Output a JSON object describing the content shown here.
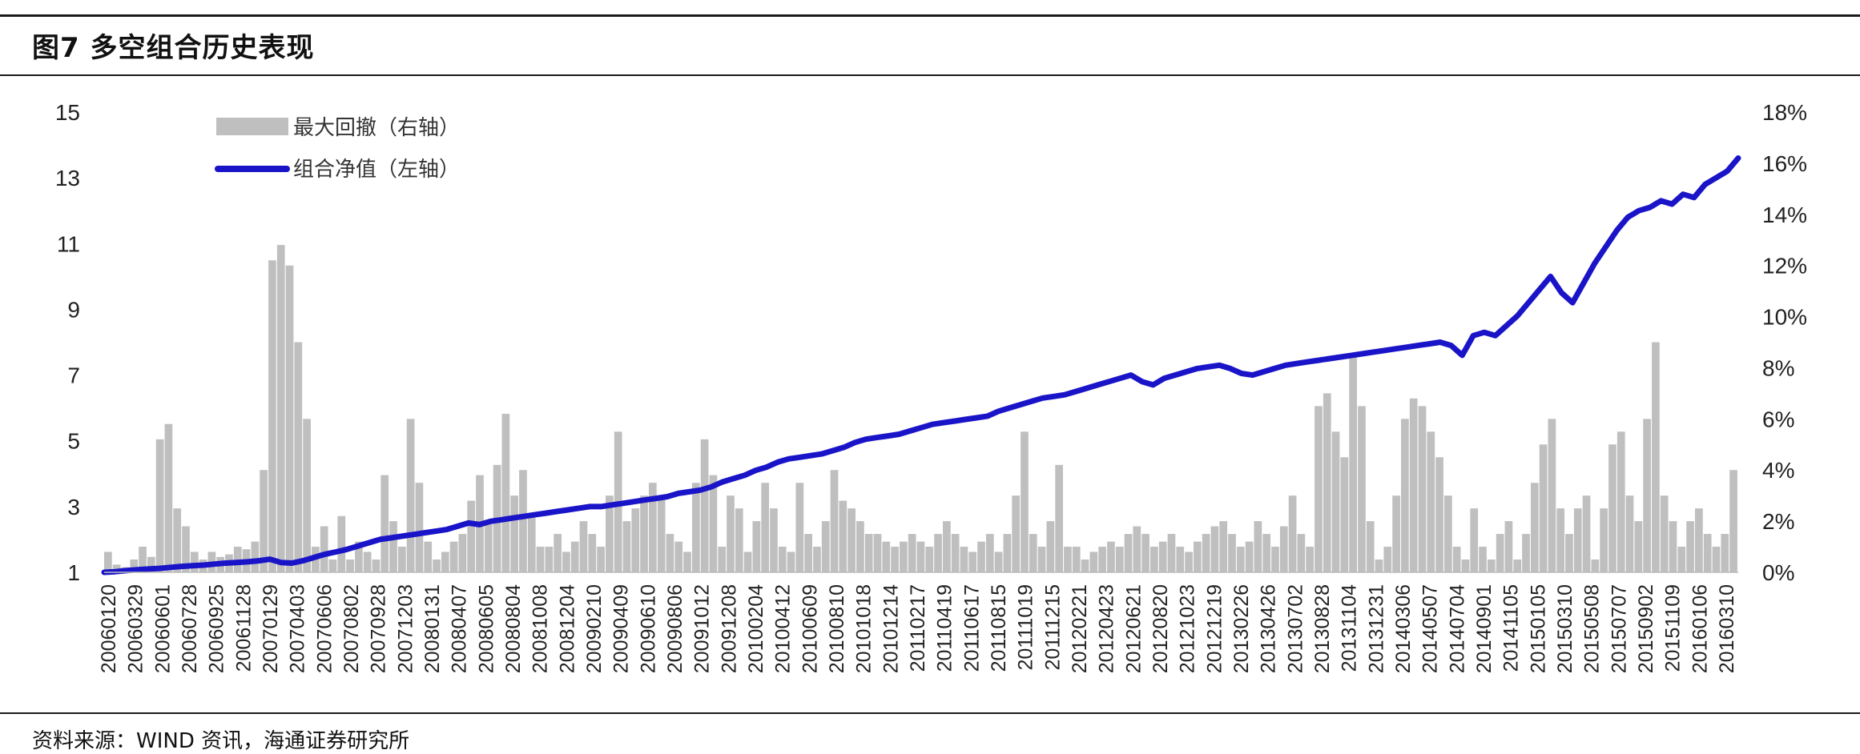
{
  "figure": {
    "title": "图7  多空组合历史表现",
    "source": "资料来源：WIND 资讯，海通证券研究所"
  },
  "chart_data": {
    "type": "bar+line",
    "legend_position": "top-left",
    "grid": false,
    "left_axis": {
      "ticks": [
        "15",
        "13",
        "11",
        "9",
        "7",
        "5",
        "3",
        "1"
      ],
      "ylim": [
        1,
        15
      ]
    },
    "right_axis": {
      "ticks": [
        "18%",
        "16%",
        "14%",
        "12%",
        "10%",
        "8%",
        "6%",
        "4%",
        "2%",
        "0%"
      ],
      "ylim": [
        0,
        18
      ]
    },
    "x_tick_labels": [
      "20060120",
      "20060329",
      "20060601",
      "20060728",
      "20060925",
      "20061128",
      "20070129",
      "20070403",
      "20070606",
      "20070802",
      "20070928",
      "20071203",
      "20080131",
      "20080407",
      "20080605",
      "20080804",
      "20081008",
      "20081204",
      "20090210",
      "20090409",
      "20090610",
      "20090806",
      "20091012",
      "20091208",
      "20100204",
      "20100412",
      "20100609",
      "20100810",
      "20101018",
      "20101214",
      "20110217",
      "20110419",
      "20110617",
      "20110815",
      "20111019",
      "20111215",
      "20120221",
      "20120423",
      "20120621",
      "20120820",
      "20121023",
      "20121219",
      "20130226",
      "20130426",
      "20130702",
      "20130828",
      "20131104",
      "20131231",
      "20140306",
      "20140507",
      "20140704",
      "20140901",
      "20141105",
      "20150105",
      "20150310",
      "20150508",
      "20150707",
      "20150902",
      "20151109",
      "20160106",
      "20160310"
    ],
    "series": [
      {
        "name": "最大回撤（右轴）",
        "kind": "bar",
        "axis": "right",
        "color": "#bfbfbf",
        "values": [
          0.8,
          0.3,
          0.2,
          0.5,
          1.0,
          0.6,
          5.2,
          5.8,
          2.5,
          1.8,
          0.8,
          0.5,
          0.8,
          0.6,
          0.7,
          1.0,
          0.9,
          1.2,
          4.0,
          12.2,
          12.8,
          12.0,
          9.0,
          6.0,
          1.0,
          1.8,
          0.5,
          2.2,
          0.5,
          1.2,
          0.8,
          0.5,
          3.8,
          2.0,
          1.0,
          6.0,
          3.5,
          1.2,
          0.5,
          0.8,
          1.2,
          1.5,
          2.8,
          3.8,
          2.0,
          4.2,
          6.2,
          3.0,
          4.0,
          2.2,
          1.0,
          1.0,
          1.5,
          0.8,
          1.2,
          2.0,
          1.5,
          1.0,
          3.0,
          5.5,
          2.0,
          2.5,
          3.0,
          3.5,
          3.0,
          1.5,
          1.2,
          0.8,
          3.5,
          5.2,
          3.8,
          1.0,
          3.0,
          2.5,
          0.8,
          2.0,
          3.5,
          2.5,
          1.0,
          0.8,
          3.5,
          1.5,
          1.0,
          2.0,
          4.0,
          2.8,
          2.5,
          2.0,
          1.5,
          1.5,
          1.2,
          1.0,
          1.2,
          1.5,
          1.2,
          1.0,
          1.5,
          2.0,
          1.5,
          1.0,
          0.8,
          1.2,
          1.5,
          0.8,
          1.5,
          3.0,
          5.5,
          1.5,
          1.0,
          2.0,
          4.2,
          1.0,
          1.0,
          0.5,
          0.8,
          1.0,
          1.2,
          1.0,
          1.5,
          1.8,
          1.5,
          1.0,
          1.2,
          1.5,
          1.0,
          0.8,
          1.2,
          1.5,
          1.8,
          2.0,
          1.5,
          1.0,
          1.2,
          2.0,
          1.5,
          1.0,
          1.8,
          3.0,
          1.5,
          1.0,
          6.5,
          7.0,
          5.5,
          4.5,
          8.5,
          6.5,
          2.0,
          0.5,
          1.0,
          3.0,
          6.0,
          6.8,
          6.5,
          5.5,
          4.5,
          3.0,
          1.0,
          0.5,
          2.5,
          1.0,
          0.5,
          1.5,
          2.0,
          0.5,
          1.5,
          3.5,
          5.0,
          6.0,
          2.5,
          1.5,
          2.5,
          3.0,
          0.5,
          2.5,
          5.0,
          5.5,
          3.0,
          2.0,
          6.0,
          9.0,
          3.0,
          2.0,
          1.0,
          2.0,
          2.5,
          1.5,
          1.0,
          1.5,
          4.0
        ],
        "note": "approximate drawdown, percent"
      },
      {
        "name": "组合净值（左轴）",
        "kind": "line",
        "axis": "left",
        "color": "#1a14c8",
        "values": [
          1.0,
          1.02,
          1.05,
          1.08,
          1.1,
          1.12,
          1.15,
          1.18,
          1.2,
          1.22,
          1.25,
          1.28,
          1.3,
          1.32,
          1.35,
          1.4,
          1.3,
          1.28,
          1.35,
          1.45,
          1.55,
          1.62,
          1.7,
          1.8,
          1.9,
          2.0,
          2.05,
          2.1,
          2.15,
          2.2,
          2.25,
          2.3,
          2.4,
          2.5,
          2.45,
          2.55,
          2.6,
          2.65,
          2.7,
          2.75,
          2.8,
          2.85,
          2.9,
          2.95,
          3.0,
          3.0,
          3.05,
          3.1,
          3.15,
          3.2,
          3.25,
          3.3,
          3.4,
          3.45,
          3.5,
          3.6,
          3.75,
          3.85,
          3.95,
          4.1,
          4.2,
          4.35,
          4.45,
          4.5,
          4.55,
          4.6,
          4.7,
          4.8,
          4.95,
          5.05,
          5.1,
          5.15,
          5.2,
          5.3,
          5.4,
          5.5,
          5.55,
          5.6,
          5.65,
          5.7,
          5.75,
          5.9,
          6.0,
          6.1,
          6.2,
          6.3,
          6.35,
          6.4,
          6.5,
          6.6,
          6.7,
          6.8,
          6.9,
          7.0,
          6.8,
          6.7,
          6.9,
          7.0,
          7.1,
          7.2,
          7.25,
          7.3,
          7.2,
          7.05,
          7.0,
          7.1,
          7.2,
          7.3,
          7.35,
          7.4,
          7.45,
          7.5,
          7.55,
          7.6,
          7.65,
          7.7,
          7.75,
          7.8,
          7.85,
          7.9,
          7.95,
          8.0,
          7.9,
          7.6,
          8.2,
          8.3,
          8.2,
          8.5,
          8.8,
          9.2,
          9.6,
          10.0,
          9.5,
          9.2,
          9.8,
          10.4,
          10.9,
          11.4,
          11.8,
          12.0,
          12.1,
          12.3,
          12.2,
          12.5,
          12.4,
          12.8,
          13.0,
          13.2,
          13.6
        ],
        "note": "approximate net value"
      }
    ]
  }
}
